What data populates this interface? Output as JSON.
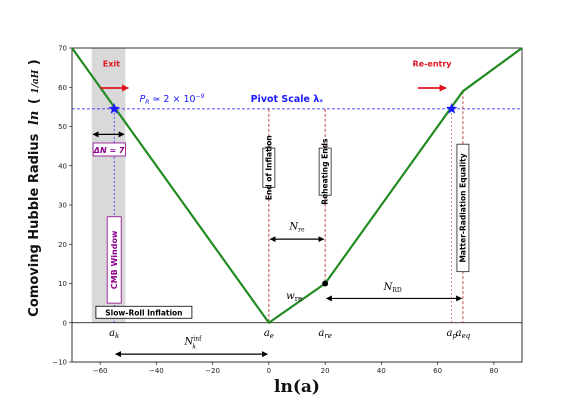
{
  "chart_data": {
    "type": "line",
    "xlabel": "ln(a)",
    "ylabel": "Comoving Hubble Radius",
    "ylabel_math": "ln (1/aH)",
    "xlim": [
      -70,
      90
    ],
    "ylim": [
      -10,
      70
    ],
    "x_ticks": [
      -60,
      -40,
      -20,
      0,
      20,
      40,
      60,
      80
    ],
    "y_ticks": [
      -10,
      0,
      10,
      20,
      30,
      40,
      50,
      60,
      70
    ],
    "x_tick_labels": [
      "−60",
      "−40",
      "−20",
      "0",
      "20",
      "40",
      "60",
      "80"
    ],
    "y_tick_labels": [
      "−10",
      "0",
      "10",
      "20",
      "30",
      "40",
      "50",
      "60",
      "70"
    ],
    "series": [
      {
        "color": "#228b22",
        "x": [
          -70,
          0,
          20,
          69,
          90
        ],
        "y": [
          70,
          0,
          10,
          59,
          70
        ]
      }
    ],
    "pivot_line_y": 54.5,
    "pivot_points": [
      {
        "x": -55,
        "y": 54.5
      },
      {
        "x": 65,
        "y": 54.5
      }
    ],
    "reheating_point": {
      "x": 20,
      "y": 10
    },
    "vertical_markers_x": [
      0,
      20,
      65,
      69
    ],
    "cmb_band_x": [
      -63,
      -51
    ],
    "cmb_center_x": -55,
    "scale_labels": [
      {
        "text": "a_k",
        "x": -55
      },
      {
        "text": "a_e",
        "x": 0
      },
      {
        "text": "a_re",
        "x": 20
      },
      {
        "text": "a_p",
        "x": 65
      },
      {
        "text": "a_eq",
        "x": 69
      }
    ],
    "colors": {
      "curve": "#228b22",
      "pivot": "#1a1aff",
      "marker": "#b22222",
      "band": "#d9d9d9",
      "exit": "#e0141e",
      "cmb": "#8b008b"
    }
  },
  "annotations": {
    "exit": "Exit",
    "reentry": "Re-entry",
    "pivot_eq": "P_R ≃ 2 × 10^−9",
    "pivot_name": "Pivot Scale λ*",
    "delta_n": "ΔN ≃ 7",
    "cmb_window": "CMB Window",
    "slow_roll": "Slow-Roll Inflation",
    "end_inflation": "End of Inflation",
    "reheating_ends": "Reheating Ends",
    "matter_radiation": "Matter-Radiation Equality",
    "n_re": "N_re",
    "n_rd": "N_RD",
    "w_re": "w_re",
    "n_k_inf": "N_k^inf"
  }
}
